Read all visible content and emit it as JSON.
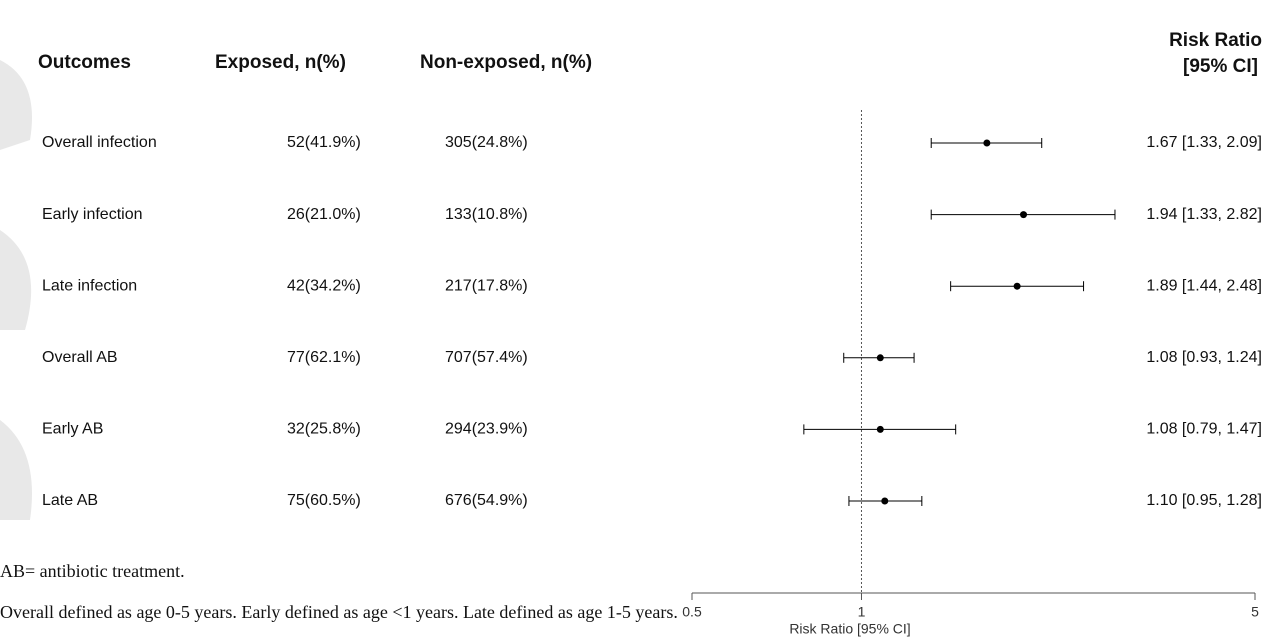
{
  "chart_data": {
    "type": "forest",
    "columns": [
      "Outcomes",
      "Exposed, n(%)",
      "Non-exposed, n(%)"
    ],
    "ci_header": [
      "Risk Ratio",
      "[95% CI]"
    ],
    "categories": [
      "Overall infection",
      "Early infection",
      "Late infection",
      "Overall AB",
      "Early AB",
      "Late AB"
    ],
    "exposed": [
      "52(41.9%)",
      "26(21.0%)",
      "42(34.2%)",
      "77(62.1%)",
      "32(25.8%)",
      "75(60.5%)"
    ],
    "non_exposed": [
      "305(24.8%)",
      "133(10.8%)",
      "217(17.8%)",
      "707(57.4%)",
      "294(23.9%)",
      "676(54.9%)"
    ],
    "values": [
      1.67,
      1.94,
      1.89,
      1.08,
      1.08,
      1.1
    ],
    "lower": [
      1.33,
      1.33,
      1.44,
      0.93,
      0.79,
      0.95
    ],
    "upper": [
      2.09,
      2.82,
      2.48,
      1.24,
      1.47,
      1.28
    ],
    "value_labels": [
      "1.67 [1.33, 2.09]",
      "1.94 [1.33, 2.82]",
      "1.89 [1.44, 2.48]",
      "1.08 [0.93, 1.24]",
      "1.08 [0.79, 1.47]",
      "1.10 [0.95, 1.28]"
    ],
    "xlabel": "Risk Ratio [95% CI]",
    "xlim": [
      0.5,
      5
    ],
    "xticks": [
      0.5,
      1,
      5
    ],
    "log_x": true,
    "reference_line": 1,
    "color": "#000000"
  },
  "notes": [
    "AB= antibiotic treatment.",
    "Overall defined as age 0-5 years. Early defined as age <1 years. Late defined as age 1-5 years."
  ]
}
